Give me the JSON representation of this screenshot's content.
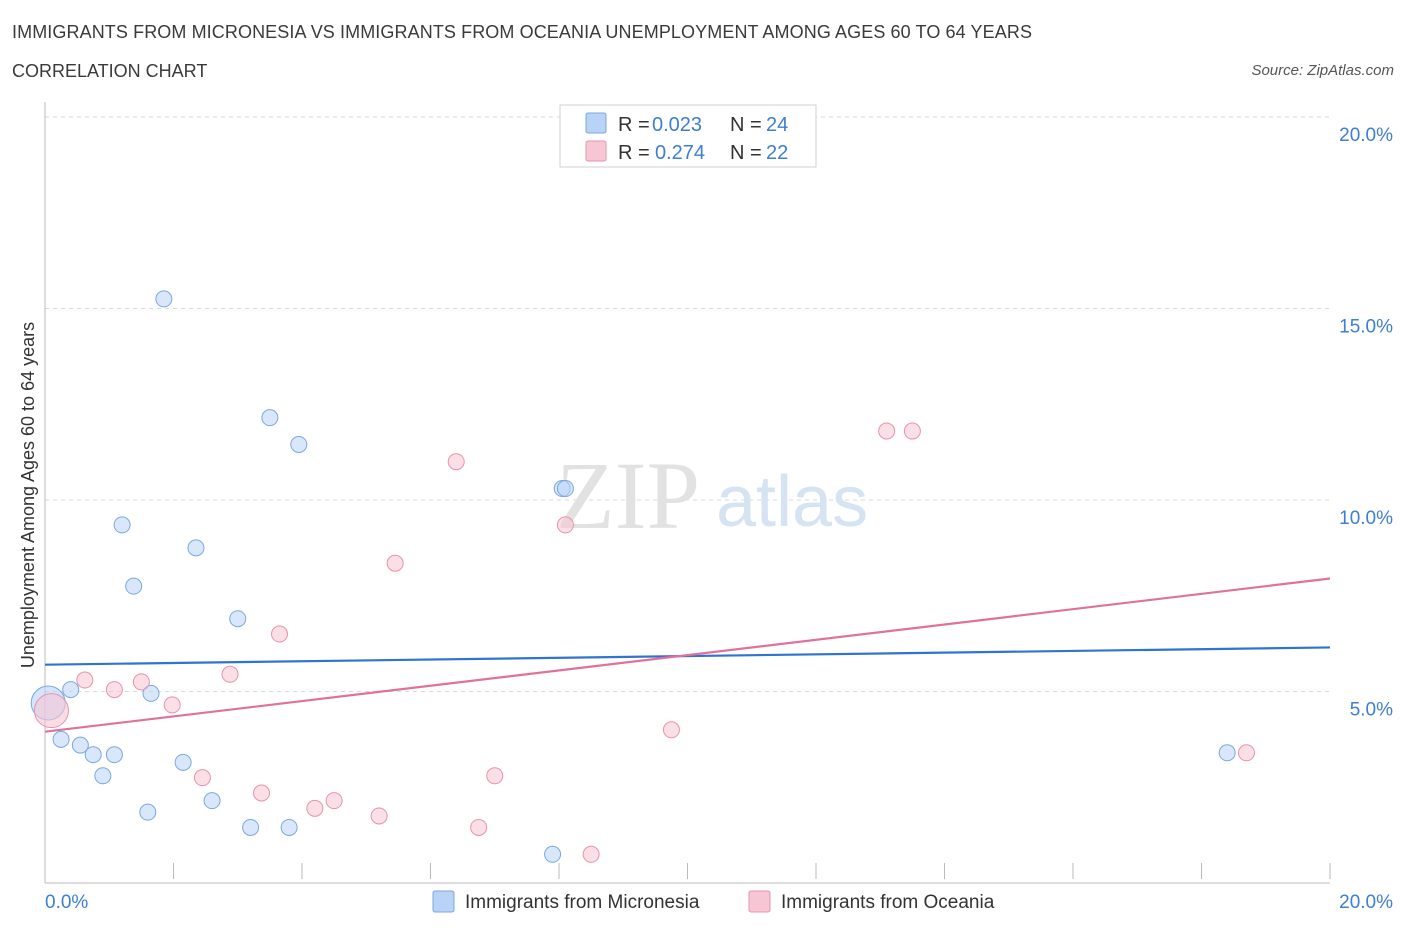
{
  "header": {
    "title": "IMMIGRANTS FROM MICRONESIA VS IMMIGRANTS FROM OCEANIA UNEMPLOYMENT AMONG AGES 60 TO 64 YEARS",
    "subtitle": "CORRELATION CHART",
    "source": "Source: ZipAtlas.com"
  },
  "watermark": {
    "zip": "ZIP",
    "atlas": "atlas"
  },
  "colors": {
    "blue_fill": "#b8d3f5",
    "blue_stroke": "#7aa8e0",
    "blue_line": "#2f74cf",
    "pink_fill": "#f7c5d3",
    "pink_stroke": "#e892ad",
    "pink_line": "#e0719a",
    "grid": "#d9d9d9",
    "axis_text": "#3d7fd0"
  },
  "chart_data": {
    "type": "scatter",
    "title": "IMMIGRANTS FROM MICRONESIA VS IMMIGRANTS FROM OCEANIA UNEMPLOYMENT AMONG AGES 60 TO 64 YEARS",
    "xlabel": "",
    "ylabel": "Unemployment Among Ages 60 to 64 years",
    "xlim": [
      0,
      20
    ],
    "ylim": [
      0,
      20
    ],
    "x_tick_labels": [
      {
        "value": 0,
        "label": "0.0%"
      },
      {
        "value": 20,
        "label": "20.0%"
      }
    ],
    "y_tick_labels": [
      {
        "value": 5,
        "label": "5.0%"
      },
      {
        "value": 10,
        "label": "10.0%"
      },
      {
        "value": 15,
        "label": "15.0%"
      },
      {
        "value": 20,
        "label": "20.0%"
      }
    ],
    "legend": {
      "placement": "top-center",
      "entries": [
        {
          "r_label": "R = ",
          "r_value": "0.023",
          "n_label": "N = ",
          "n_value": "24"
        },
        {
          "r_label": "R = ",
          "r_value": "0.274",
          "n_label": "N = ",
          "n_value": "22"
        }
      ]
    },
    "series": [
      {
        "name": "Immigrants from Micronesia",
        "color": "blue",
        "trend": {
          "x0": 0,
          "y0": 5.7,
          "x1": 20,
          "y1": 6.15
        },
        "points": [
          {
            "x": 0.05,
            "y": 4.7,
            "big": true
          },
          {
            "x": 0.25,
            "y": 3.75
          },
          {
            "x": 0.4,
            "y": 5.05
          },
          {
            "x": 0.55,
            "y": 3.6
          },
          {
            "x": 0.75,
            "y": 3.35
          },
          {
            "x": 0.9,
            "y": 2.8
          },
          {
            "x": 1.08,
            "y": 3.35
          },
          {
            "x": 1.2,
            "y": 9.35
          },
          {
            "x": 1.38,
            "y": 7.75
          },
          {
            "x": 1.6,
            "y": 1.85
          },
          {
            "x": 1.65,
            "y": 4.95
          },
          {
            "x": 1.85,
            "y": 15.25
          },
          {
            "x": 2.15,
            "y": 3.15
          },
          {
            "x": 2.35,
            "y": 8.75
          },
          {
            "x": 2.6,
            "y": 2.15
          },
          {
            "x": 3.0,
            "y": 6.9
          },
          {
            "x": 3.2,
            "y": 1.45
          },
          {
            "x": 3.5,
            "y": 12.15
          },
          {
            "x": 3.8,
            "y": 1.45
          },
          {
            "x": 3.95,
            "y": 11.45
          },
          {
            "x": 7.9,
            "y": 0.75
          },
          {
            "x": 8.05,
            "y": 10.3
          },
          {
            "x": 8.1,
            "y": 10.3
          },
          {
            "x": 18.4,
            "y": 3.4
          }
        ]
      },
      {
        "name": "Immigrants from Oceania",
        "color": "pink",
        "trend": {
          "x0": 0,
          "y0": 3.95,
          "x1": 20,
          "y1": 7.95
        },
        "points": [
          {
            "x": 0.1,
            "y": 4.5,
            "big": true
          },
          {
            "x": 0.62,
            "y": 5.3
          },
          {
            "x": 1.08,
            "y": 5.05
          },
          {
            "x": 1.5,
            "y": 5.25
          },
          {
            "x": 1.98,
            "y": 4.65
          },
          {
            "x": 2.45,
            "y": 2.75
          },
          {
            "x": 2.88,
            "y": 5.45
          },
          {
            "x": 3.37,
            "y": 2.35
          },
          {
            "x": 3.65,
            "y": 6.5
          },
          {
            "x": 4.2,
            "y": 1.95
          },
          {
            "x": 4.5,
            "y": 2.15
          },
          {
            "x": 5.2,
            "y": 1.75
          },
          {
            "x": 5.45,
            "y": 8.35
          },
          {
            "x": 6.4,
            "y": 11.0
          },
          {
            "x": 6.75,
            "y": 1.45
          },
          {
            "x": 7.0,
            "y": 2.8
          },
          {
            "x": 8.1,
            "y": 9.35
          },
          {
            "x": 8.5,
            "y": 0.75
          },
          {
            "x": 9.75,
            "y": 4.0
          },
          {
            "x": 13.1,
            "y": 11.8
          },
          {
            "x": 13.5,
            "y": 11.8
          },
          {
            "x": 18.7,
            "y": 3.4
          }
        ]
      }
    ]
  }
}
